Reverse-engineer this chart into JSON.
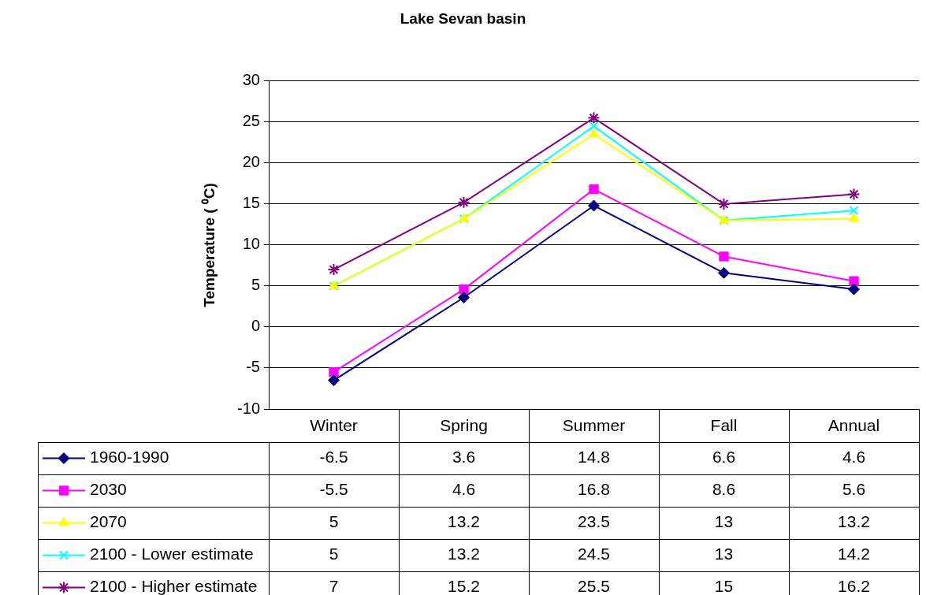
{
  "chart_data": {
    "type": "line",
    "title": "Lake Sevan basin",
    "ylabel": "Temperature ( ⁰C)",
    "categories": [
      "Winter",
      "Spring",
      "Summer",
      "Fall",
      "Annual"
    ],
    "series": [
      {
        "name": "1960-1990",
        "color": "#000080",
        "marker": "diamond",
        "values": [
          -6.5,
          3.6,
          14.8,
          6.6,
          4.6
        ]
      },
      {
        "name": "2030",
        "color": "#ff00ff",
        "marker": "square",
        "values": [
          -5.5,
          4.6,
          16.8,
          8.6,
          5.6
        ]
      },
      {
        "name": "2070",
        "color": "#ffff00",
        "marker": "triangle",
        "values": [
          5,
          13.2,
          23.5,
          13,
          13.2
        ]
      },
      {
        "name": "2100 - Lower estimate",
        "color": "#00ffff",
        "marker": "cross",
        "values": [
          5,
          13.2,
          24.5,
          13,
          14.2
        ]
      },
      {
        "name": "2100 - Higher estimate",
        "color": "#800080",
        "marker": "cross",
        "values": [
          7,
          15.2,
          25.5,
          15,
          16.2
        ]
      }
    ],
    "ylim": [
      -10,
      30
    ],
    "yticks": [
      -10,
      -5,
      0,
      5,
      10,
      15,
      20,
      25,
      30
    ],
    "grid": "y",
    "legend": "bottom left",
    "data_labels": true
  }
}
